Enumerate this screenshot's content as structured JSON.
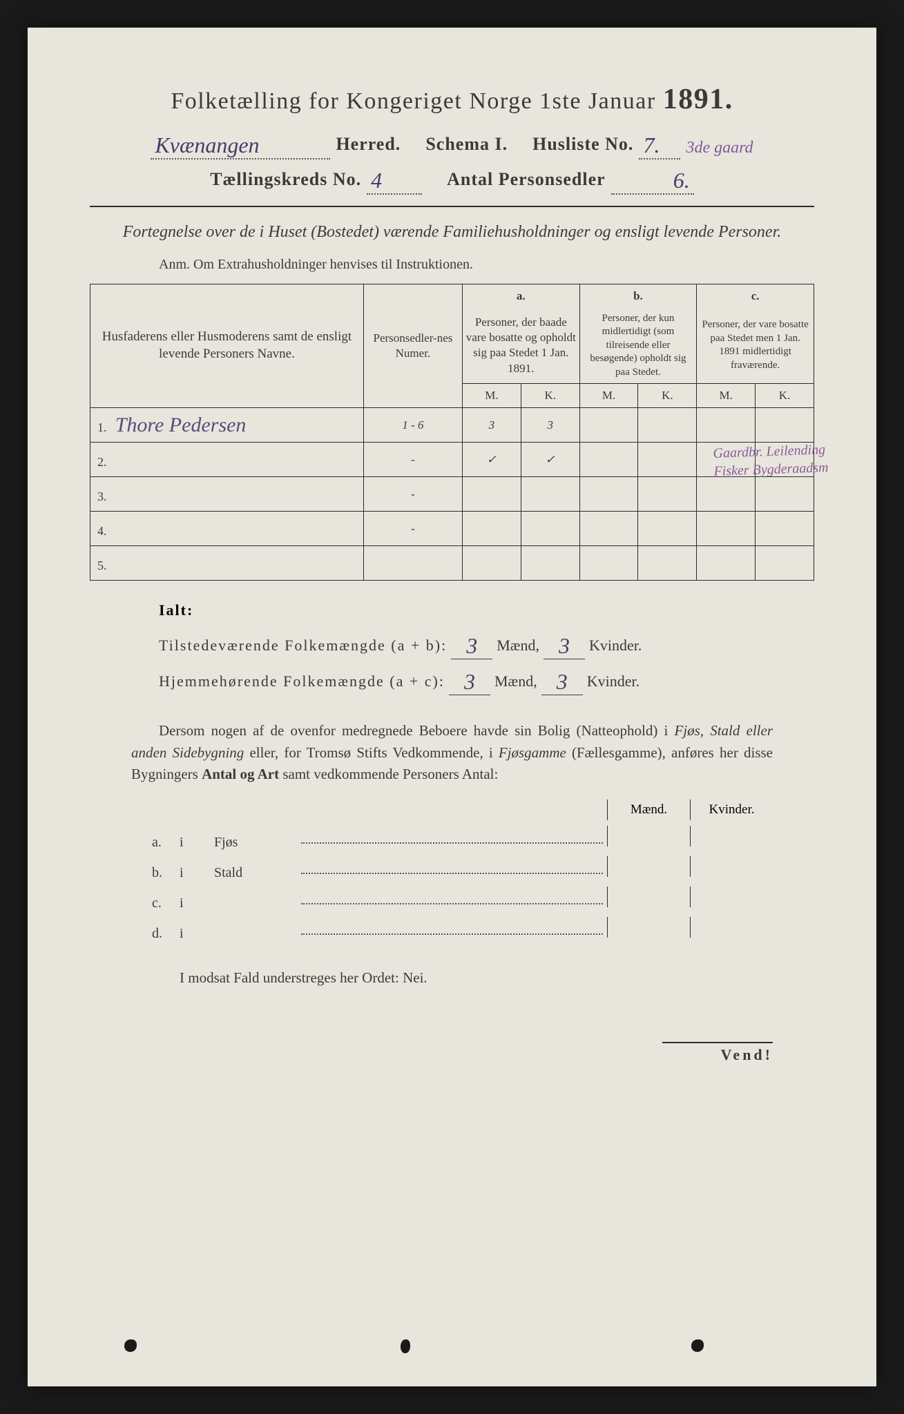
{
  "title": {
    "main": "Folketælling for Kongeriget Norge 1ste Januar",
    "year": "1891."
  },
  "header": {
    "herred_value": "Kvænangen",
    "herred_label": "Herred.",
    "schema_label": "Schema I.",
    "husliste_label": "Husliste No.",
    "husliste_value": "7.",
    "husliste_note": "3de gaard",
    "taellingskreds_label": "Tællingskreds No.",
    "taellingskreds_value": "4",
    "antal_label": "Antal Personsedler",
    "antal_value": "6."
  },
  "subtitle": "Fortegnelse over de i Huset (Bostedet) værende Familiehusholdninger og ensligt levende Personer.",
  "anm": "Anm. Om Extrahusholdninger henvises til Instruktionen.",
  "table": {
    "col_names_header": "Husfaderens eller Husmoderens samt de ensligt levende Personers Navne.",
    "col_numer_header": "Personsedler-nes Numer.",
    "col_a_label": "a.",
    "col_a_header": "Personer, der baade vare bosatte og opholdt sig paa Stedet 1 Jan. 1891.",
    "col_b_label": "b.",
    "col_b_header": "Personer, der kun midlertidigt (som tilreisende eller besøgende) opholdt sig paa Stedet.",
    "col_c_label": "c.",
    "col_c_header": "Personer, der vare bosatte paa Stedet men 1 Jan. 1891 midlertidigt fraværende.",
    "m_label": "M.",
    "k_label": "K.",
    "rows": [
      {
        "num": "1.",
        "name": "Thore Pedersen",
        "numer": "1 - 6",
        "a_m": "3",
        "a_k": "3",
        "b_m": "",
        "b_k": "",
        "c_m": "",
        "c_k": ""
      },
      {
        "num": "2.",
        "name": "",
        "numer": "-",
        "a_m": "✓",
        "a_k": "✓",
        "b_m": "",
        "b_k": "",
        "c_m": "",
        "c_k": ""
      },
      {
        "num": "3.",
        "name": "",
        "numer": "-",
        "a_m": "",
        "a_k": "",
        "b_m": "",
        "b_k": "",
        "c_m": "",
        "c_k": ""
      },
      {
        "num": "4.",
        "name": "",
        "numer": "-",
        "a_m": "",
        "a_k": "",
        "b_m": "",
        "b_k": "",
        "c_m": "",
        "c_k": ""
      },
      {
        "num": "5.",
        "name": "",
        "numer": "",
        "a_m": "",
        "a_k": "",
        "b_m": "",
        "b_k": "",
        "c_m": "",
        "c_k": ""
      }
    ],
    "margin_note_1": "Gaardbr. Leilending",
    "margin_note_2": "Fisker Bygderaadsm"
  },
  "totals": {
    "ialt_label": "Ialt:",
    "tilstedevaerende_label": "Tilstedeværende Folkemængde (a + b):",
    "hjemmehoerende_label": "Hjemmehørende Folkemængde (a + c):",
    "maend_label": "Mænd,",
    "kvinder_label": "Kvinder.",
    "tilst_m": "3",
    "tilst_k": "3",
    "hjem_m": "3",
    "hjem_k": "3"
  },
  "paragraph": {
    "text1": "Dersom nogen af de ovenfor medregnede Beboere havde sin Bolig (Natteophold) i ",
    "italic1": "Fjøs, Stald eller anden Sidebygning",
    "text2": " eller, for Tromsø Stifts Vedkommende, i ",
    "italic2": "Fjøsgamme",
    "text3": " (Fællesgamme), anføres her disse Bygningers ",
    "bold1": "Antal og Art",
    "text4": " samt vedkommende Personers Antal:"
  },
  "subtable": {
    "maend_label": "Mænd.",
    "kvinder_label": "Kvinder.",
    "rows": [
      {
        "letter": "a.",
        "i": "i",
        "name": "Fjøs"
      },
      {
        "letter": "b.",
        "i": "i",
        "name": "Stald"
      },
      {
        "letter": "c.",
        "i": "i",
        "name": ""
      },
      {
        "letter": "d.",
        "i": "i",
        "name": ""
      }
    ]
  },
  "modsat": "I modsat Fald understreges her Ordet: Nei.",
  "vend": "Vend!",
  "colors": {
    "paper": "#e8e6dc",
    "ink": "#3a3a3a",
    "handwriting": "#5a4a7a",
    "purple_note": "#8a5a9a"
  }
}
